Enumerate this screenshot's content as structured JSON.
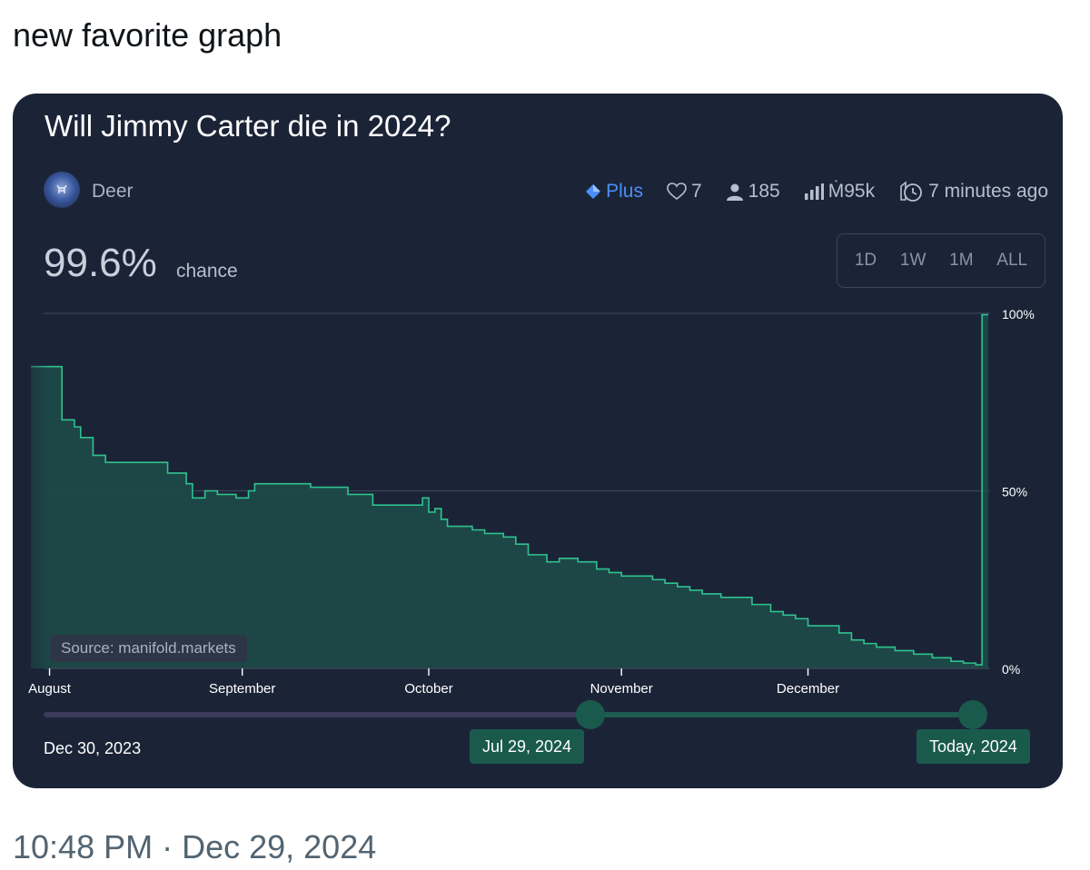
{
  "tweet": {
    "text": "new favorite graph",
    "timestamp": "10:48 PM · Dec 29, 2024"
  },
  "market": {
    "title": "Will Jimmy Carter die in 2024?",
    "author": "Deer",
    "badge": "Plus",
    "likes": "7",
    "traders": "185",
    "volume": "Ṁ95k",
    "updated": "7 minutes ago",
    "probability": "99.6%",
    "probability_label": "chance",
    "ranges": [
      "1D",
      "1W",
      "1M",
      "ALL"
    ],
    "source": "Source: manifold.markets"
  },
  "slider": {
    "start_label": "Dec 30, 2023",
    "left_handle_label": "Jul 29, 2024",
    "right_handle_label": "Today, 2024",
    "range": [
      0.6,
      1.0
    ]
  },
  "colors": {
    "card_bg": "#1b2437",
    "line": "#2fc28f",
    "fill": "#1e4a47",
    "plus": "#4c8ef7"
  },
  "icons": {
    "plus": "diamond-icon",
    "likes": "heart-icon",
    "traders": "user-icon",
    "volume": "bar-chart-icon",
    "updated": "clock-icon"
  },
  "chart_data": {
    "type": "area",
    "title": "",
    "xlabel": "",
    "ylabel": "",
    "ylim": [
      0,
      100
    ],
    "y_tick_labels": [
      "100%",
      "50%",
      "0%"
    ],
    "y_ticks": [
      100,
      50,
      0
    ],
    "x_tick_labels": [
      "August",
      "September",
      "October",
      "November",
      "December"
    ],
    "x_ticks": [
      "2024-08-01",
      "2024-09-01",
      "2024-10-01",
      "2024-11-01",
      "2024-12-01"
    ],
    "xlim": [
      "2024-07-29",
      "2024-12-30"
    ],
    "grid": true,
    "series": [
      {
        "x": [
          "2024-07-29",
          "2024-08-02",
          "2024-08-03",
          "2024-08-05",
          "2024-08-06",
          "2024-08-08",
          "2024-08-10",
          "2024-08-12",
          "2024-08-15",
          "2024-08-18",
          "2024-08-20",
          "2024-08-21",
          "2024-08-23",
          "2024-08-24",
          "2024-08-26",
          "2024-08-28",
          "2024-08-31",
          "2024-09-01",
          "2024-09-02",
          "2024-09-03",
          "2024-09-05",
          "2024-09-08",
          "2024-09-12",
          "2024-09-15",
          "2024-09-18",
          "2024-09-22",
          "2024-09-25",
          "2024-09-28",
          "2024-09-30",
          "2024-10-01",
          "2024-10-02",
          "2024-10-03",
          "2024-10-04",
          "2024-10-05",
          "2024-10-08",
          "2024-10-10",
          "2024-10-13",
          "2024-10-15",
          "2024-10-17",
          "2024-10-20",
          "2024-10-22",
          "2024-10-25",
          "2024-10-28",
          "2024-10-30",
          "2024-11-01",
          "2024-11-04",
          "2024-11-06",
          "2024-11-08",
          "2024-11-10",
          "2024-11-12",
          "2024-11-14",
          "2024-11-17",
          "2024-11-19",
          "2024-11-22",
          "2024-11-25",
          "2024-11-27",
          "2024-11-29",
          "2024-12-01",
          "2024-12-04",
          "2024-12-06",
          "2024-12-08",
          "2024-12-10",
          "2024-12-12",
          "2024-12-15",
          "2024-12-18",
          "2024-12-21",
          "2024-12-24",
          "2024-12-26",
          "2024-12-28",
          "2024-12-29",
          "2024-12-29",
          "2024-12-30"
        ],
        "values": [
          85,
          85,
          70,
          68,
          65,
          60,
          58,
          58,
          58,
          58,
          55,
          55,
          52,
          48,
          50,
          49,
          48,
          48,
          50,
          52,
          52,
          52,
          51,
          51,
          49,
          46,
          46,
          46,
          48,
          44,
          45,
          42,
          40,
          40,
          39,
          38,
          37,
          35,
          32,
          30,
          31,
          30,
          28,
          27,
          26,
          26,
          25,
          24,
          23,
          22,
          21,
          20,
          20,
          18,
          16,
          15,
          14,
          12,
          12,
          10,
          8,
          7,
          6,
          5,
          4,
          3,
          2,
          1.5,
          1,
          1,
          99.6,
          99.6
        ]
      }
    ]
  }
}
